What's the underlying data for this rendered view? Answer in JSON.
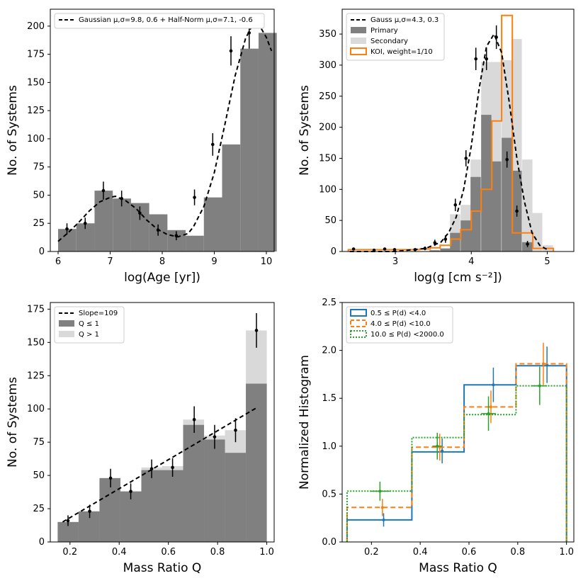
{
  "colors": {
    "bar_dark": "#808080",
    "bar_light": "#d9d9d9",
    "orange": "#ff7f0e",
    "blue": "#1f77b4",
    "green": "#2ca02c",
    "black": "#000000"
  },
  "chart_data": [
    {
      "id": "age",
      "type": "bar",
      "xlabel": "log(Age [yr])",
      "ylabel": "No. of Systems",
      "xlim": [
        5.85,
        10.15
      ],
      "ylim": [
        0,
        215
      ],
      "xticks": [
        6,
        7,
        8,
        9,
        10
      ],
      "yticks": [
        0,
        25,
        50,
        75,
        100,
        125,
        150,
        175,
        200
      ],
      "legend": {
        "position": "top-left",
        "entries": [
          {
            "label": "Gaussian μ,σ=9.8, 0.6 + Half-Norm μ,σ=7.1, -0.6",
            "style": "dashed"
          }
        ]
      },
      "bin_width": 0.35,
      "bars": [
        {
          "x": 6.0,
          "v": 20
        },
        {
          "x": 6.35,
          "v": 25
        },
        {
          "x": 6.7,
          "v": 54
        },
        {
          "x": 7.05,
          "v": 47
        },
        {
          "x": 7.4,
          "v": 43
        },
        {
          "x": 7.75,
          "v": 33
        },
        {
          "x": 8.1,
          "v": 19
        },
        {
          "x": 8.45,
          "v": 14
        },
        {
          "x": 8.8,
          "v": 48
        },
        {
          "x": 9.15,
          "v": 95
        },
        {
          "x": 9.5,
          "v": 180
        },
        {
          "x": 9.85,
          "v": 194
        }
      ],
      "points": [
        {
          "x": 6.17,
          "y": 20,
          "e": 5
        },
        {
          "x": 6.52,
          "y": 25,
          "e": 5
        },
        {
          "x": 6.87,
          "y": 54,
          "e": 8
        },
        {
          "x": 7.22,
          "y": 47,
          "e": 7
        },
        {
          "x": 7.57,
          "y": 34,
          "e": 6
        },
        {
          "x": 7.92,
          "y": 19,
          "e": 5
        },
        {
          "x": 8.27,
          "y": 14,
          "e": 4
        },
        {
          "x": 8.62,
          "y": 48,
          "e": 7
        },
        {
          "x": 8.97,
          "y": 95,
          "e": 10
        },
        {
          "x": 9.32,
          "y": 178,
          "e": 13
        },
        {
          "x": 9.67,
          "y": 194,
          "e": 14
        }
      ],
      "curve": {
        "x": [
          6.0,
          6.2,
          6.4,
          6.6,
          6.8,
          7.0,
          7.1,
          7.3,
          7.5,
          7.7,
          7.9,
          8.1,
          8.3,
          8.5,
          8.6,
          8.8,
          9.0,
          9.2,
          9.4,
          9.6,
          9.7,
          9.8,
          9.9,
          10.0,
          10.1
        ],
        "y": [
          9,
          17,
          26,
          36,
          44,
          48,
          49,
          45,
          38,
          28,
          20,
          15,
          13,
          16,
          22,
          40,
          70,
          112,
          156,
          189,
          198,
          201,
          198,
          190,
          178
        ]
      }
    },
    {
      "id": "logg",
      "type": "bar",
      "xlabel": "log(g [cm s⁻²])",
      "ylabel": "No. of Systems",
      "xlim": [
        2.3,
        5.35
      ],
      "ylim": [
        0,
        390
      ],
      "xticks": [
        3,
        4,
        5
      ],
      "yticks": [
        0,
        50,
        100,
        150,
        200,
        250,
        300,
        350
      ],
      "legend": {
        "position": "top-left",
        "entries": [
          {
            "label": "Gauss μ,σ=4.3, 0.3",
            "style": "dashed"
          },
          {
            "label": "Primary",
            "style": "dark"
          },
          {
            "label": "Secondary",
            "style": "light"
          },
          {
            "label": "KOI, weight=1/10",
            "style": "orange"
          }
        ]
      },
      "bin_width": 0.135,
      "secondary_bars": [
        {
          "x": 3.72,
          "v": 60
        },
        {
          "x": 3.86,
          "v": 75
        },
        {
          "x": 3.99,
          "v": 148
        },
        {
          "x": 4.13,
          "v": 305
        },
        {
          "x": 4.26,
          "v": 305
        },
        {
          "x": 4.4,
          "v": 308
        },
        {
          "x": 4.53,
          "v": 342
        },
        {
          "x": 4.67,
          "v": 148
        },
        {
          "x": 4.8,
          "v": 62
        },
        {
          "x": 4.94,
          "v": 10
        }
      ],
      "primary_bars": [
        {
          "x": 3.45,
          "v": 2
        },
        {
          "x": 3.59,
          "v": 5
        },
        {
          "x": 3.72,
          "v": 30
        },
        {
          "x": 3.86,
          "v": 50
        },
        {
          "x": 3.99,
          "v": 120
        },
        {
          "x": 4.13,
          "v": 220
        },
        {
          "x": 4.26,
          "v": 145
        },
        {
          "x": 4.4,
          "v": 183
        },
        {
          "x": 4.53,
          "v": 130
        },
        {
          "x": 4.67,
          "v": 15
        }
      ],
      "koi_step": {
        "edges": [
          2.38,
          2.51,
          2.65,
          2.78,
          2.92,
          3.05,
          3.19,
          3.32,
          3.46,
          3.59,
          3.73,
          3.86,
          4.0,
          4.13,
          4.27,
          4.4,
          4.54,
          4.67,
          4.81,
          4.94,
          5.08
        ],
        "values": [
          3,
          3,
          3,
          3,
          3,
          3,
          3,
          4,
          6,
          10,
          20,
          35,
          65,
          100,
          210,
          380,
          30,
          30,
          5,
          5
        ]
      },
      "points": [
        {
          "x": 2.45,
          "y": 4,
          "e": 2
        },
        {
          "x": 2.72,
          "y": 2,
          "e": 1
        },
        {
          "x": 2.86,
          "y": 4,
          "e": 2
        },
        {
          "x": 2.99,
          "y": 3,
          "e": 2
        },
        {
          "x": 3.26,
          "y": 3,
          "e": 2
        },
        {
          "x": 3.39,
          "y": 5,
          "e": 3
        },
        {
          "x": 3.52,
          "y": 14,
          "e": 5
        },
        {
          "x": 3.66,
          "y": 20,
          "e": 6
        },
        {
          "x": 3.79,
          "y": 75,
          "e": 10
        },
        {
          "x": 3.93,
          "y": 150,
          "e": 13
        },
        {
          "x": 4.06,
          "y": 310,
          "e": 18
        },
        {
          "x": 4.2,
          "y": 310,
          "e": 18
        },
        {
          "x": 4.33,
          "y": 345,
          "e": 19
        },
        {
          "x": 4.47,
          "y": 148,
          "e": 13
        },
        {
          "x": 4.6,
          "y": 65,
          "e": 9
        },
        {
          "x": 4.74,
          "y": 12,
          "e": 5
        }
      ],
      "curve": {
        "x": [
          2.4,
          3.0,
          3.4,
          3.6,
          3.7,
          3.8,
          3.9,
          4.0,
          4.1,
          4.2,
          4.3,
          4.4,
          4.5,
          4.6,
          4.7,
          4.8,
          4.9,
          5.0
        ],
        "y": [
          0,
          0,
          5,
          15,
          30,
          55,
          100,
          170,
          260,
          330,
          350,
          320,
          240,
          150,
          80,
          30,
          10,
          3
        ]
      }
    },
    {
      "id": "massratio",
      "type": "bar",
      "xlabel": "Mass Ratio Q",
      "ylabel": "No. of Systems",
      "xlim": [
        0.12,
        1.03
      ],
      "ylim": [
        0,
        180
      ],
      "xticks": [
        0.2,
        0.4,
        0.6,
        0.8,
        1.0
      ],
      "xticklabels": [
        "0.2",
        "0.4",
        "0.6",
        "0.8",
        "1.0"
      ],
      "yticks": [
        0,
        25,
        50,
        75,
        100,
        125,
        150,
        175
      ],
      "legend": {
        "position": "top-left",
        "entries": [
          {
            "label": "Slope=109",
            "style": "dashed"
          },
          {
            "label": "Q ≤ 1",
            "style": "dark"
          },
          {
            "label": "Q > 1",
            "style": "light"
          }
        ]
      },
      "bin_width": 0.085,
      "light_bars": [
        {
          "x": 0.15,
          "v": 15
        },
        {
          "x": 0.235,
          "v": 23
        },
        {
          "x": 0.32,
          "v": 48
        },
        {
          "x": 0.405,
          "v": 38
        },
        {
          "x": 0.49,
          "v": 56
        },
        {
          "x": 0.575,
          "v": 57
        },
        {
          "x": 0.66,
          "v": 92
        },
        {
          "x": 0.745,
          "v": 80
        },
        {
          "x": 0.83,
          "v": 84
        },
        {
          "x": 0.915,
          "v": 159
        }
      ],
      "dark_bars": [
        {
          "x": 0.15,
          "v": 15
        },
        {
          "x": 0.235,
          "v": 23
        },
        {
          "x": 0.32,
          "v": 48
        },
        {
          "x": 0.405,
          "v": 38
        },
        {
          "x": 0.49,
          "v": 54
        },
        {
          "x": 0.575,
          "v": 54
        },
        {
          "x": 0.66,
          "v": 88
        },
        {
          "x": 0.745,
          "v": 77
        },
        {
          "x": 0.83,
          "v": 67
        },
        {
          "x": 0.915,
          "v": 119
        }
      ],
      "points": [
        {
          "x": 0.192,
          "y": 16,
          "e": 4
        },
        {
          "x": 0.28,
          "y": 23,
          "e": 5
        },
        {
          "x": 0.365,
          "y": 48,
          "e": 7
        },
        {
          "x": 0.447,
          "y": 38,
          "e": 6
        },
        {
          "x": 0.532,
          "y": 55,
          "e": 7
        },
        {
          "x": 0.617,
          "y": 56,
          "e": 7
        },
        {
          "x": 0.705,
          "y": 92,
          "e": 10
        },
        {
          "x": 0.788,
          "y": 79,
          "e": 9
        },
        {
          "x": 0.873,
          "y": 84,
          "e": 9
        },
        {
          "x": 0.958,
          "y": 159,
          "e": 13
        }
      ],
      "line": {
        "x": [
          0.17,
          0.96
        ],
        "y": [
          15,
          101
        ]
      }
    },
    {
      "id": "normhist",
      "type": "line",
      "xlabel": "Mass Ratio Q",
      "ylabel": "Normalized Histogram",
      "xlim": [
        0.08,
        1.03
      ],
      "ylim": [
        0,
        2.5
      ],
      "xticks": [
        0.2,
        0.4,
        0.6,
        0.8,
        1.0
      ],
      "xticklabels": [
        "0.2",
        "0.4",
        "0.6",
        "0.8",
        "1.0"
      ],
      "yticks": [
        0,
        0.5,
        1.0,
        1.5,
        2.0,
        2.5
      ],
      "yticklabels": [
        "0.0",
        "0.5",
        "1.0",
        "1.5",
        "2.0",
        "2.5"
      ],
      "legend": {
        "position": "top-left",
        "entries": [
          {
            "label": "0.5 ≤ P(d) <4.0",
            "style": "blue"
          },
          {
            "label": "4.0 ≤ P(d) <10.0",
            "style": "orange"
          },
          {
            "label": "10.0 ≤ P(d) <2000.0",
            "style": "green"
          }
        ]
      },
      "edges": [
        0.1,
        0.366,
        0.58,
        0.793,
        1.0
      ],
      "series": [
        {
          "name": "0.5 ≤ P(d) <4.0",
          "color": "blue",
          "values": [
            0.23,
            0.94,
            1.64,
            1.84
          ],
          "points": [
            {
              "x": 0.25,
              "y": 0.23,
              "ey": 0.07,
              "ex": 0.0
            },
            {
              "x": 0.49,
              "y": 0.95,
              "ey": 0.13,
              "ex": 0.0
            },
            {
              "x": 0.7,
              "y": 1.64,
              "ey": 0.18,
              "ex": 0.0
            },
            {
              "x": 0.92,
              "y": 1.85,
              "ey": 0.19,
              "ex": 0.0
            }
          ]
        },
        {
          "name": "4.0 ≤ P(d) <10.0",
          "color": "orange",
          "values": [
            0.36,
            0.99,
            1.41,
            1.86
          ],
          "points": [
            {
              "x": 0.245,
              "y": 0.36,
              "ey": 0.09,
              "ex": 0.0
            },
            {
              "x": 0.48,
              "y": 0.99,
              "ey": 0.14,
              "ex": 0.0
            },
            {
              "x": 0.69,
              "y": 1.41,
              "ey": 0.17,
              "ex": 0.0
            },
            {
              "x": 0.905,
              "y": 1.86,
              "ey": 0.22,
              "ex": 0.0
            }
          ]
        },
        {
          "name": "10.0 ≤ P(d) <2000.0",
          "color": "green",
          "values": [
            0.53,
            1.09,
            1.33,
            1.63
          ],
          "points": [
            {
              "x": 0.235,
              "y": 0.53,
              "ey": 0.1,
              "ex": 0.04
            },
            {
              "x": 0.47,
              "y": 1.0,
              "ey": 0.14,
              "ex": 0.02
            },
            {
              "x": 0.68,
              "y": 1.34,
              "ey": 0.18,
              "ex": 0.03
            },
            {
              "x": 0.89,
              "y": 1.63,
              "ey": 0.2,
              "ex": 0.03
            }
          ]
        }
      ]
    }
  ]
}
